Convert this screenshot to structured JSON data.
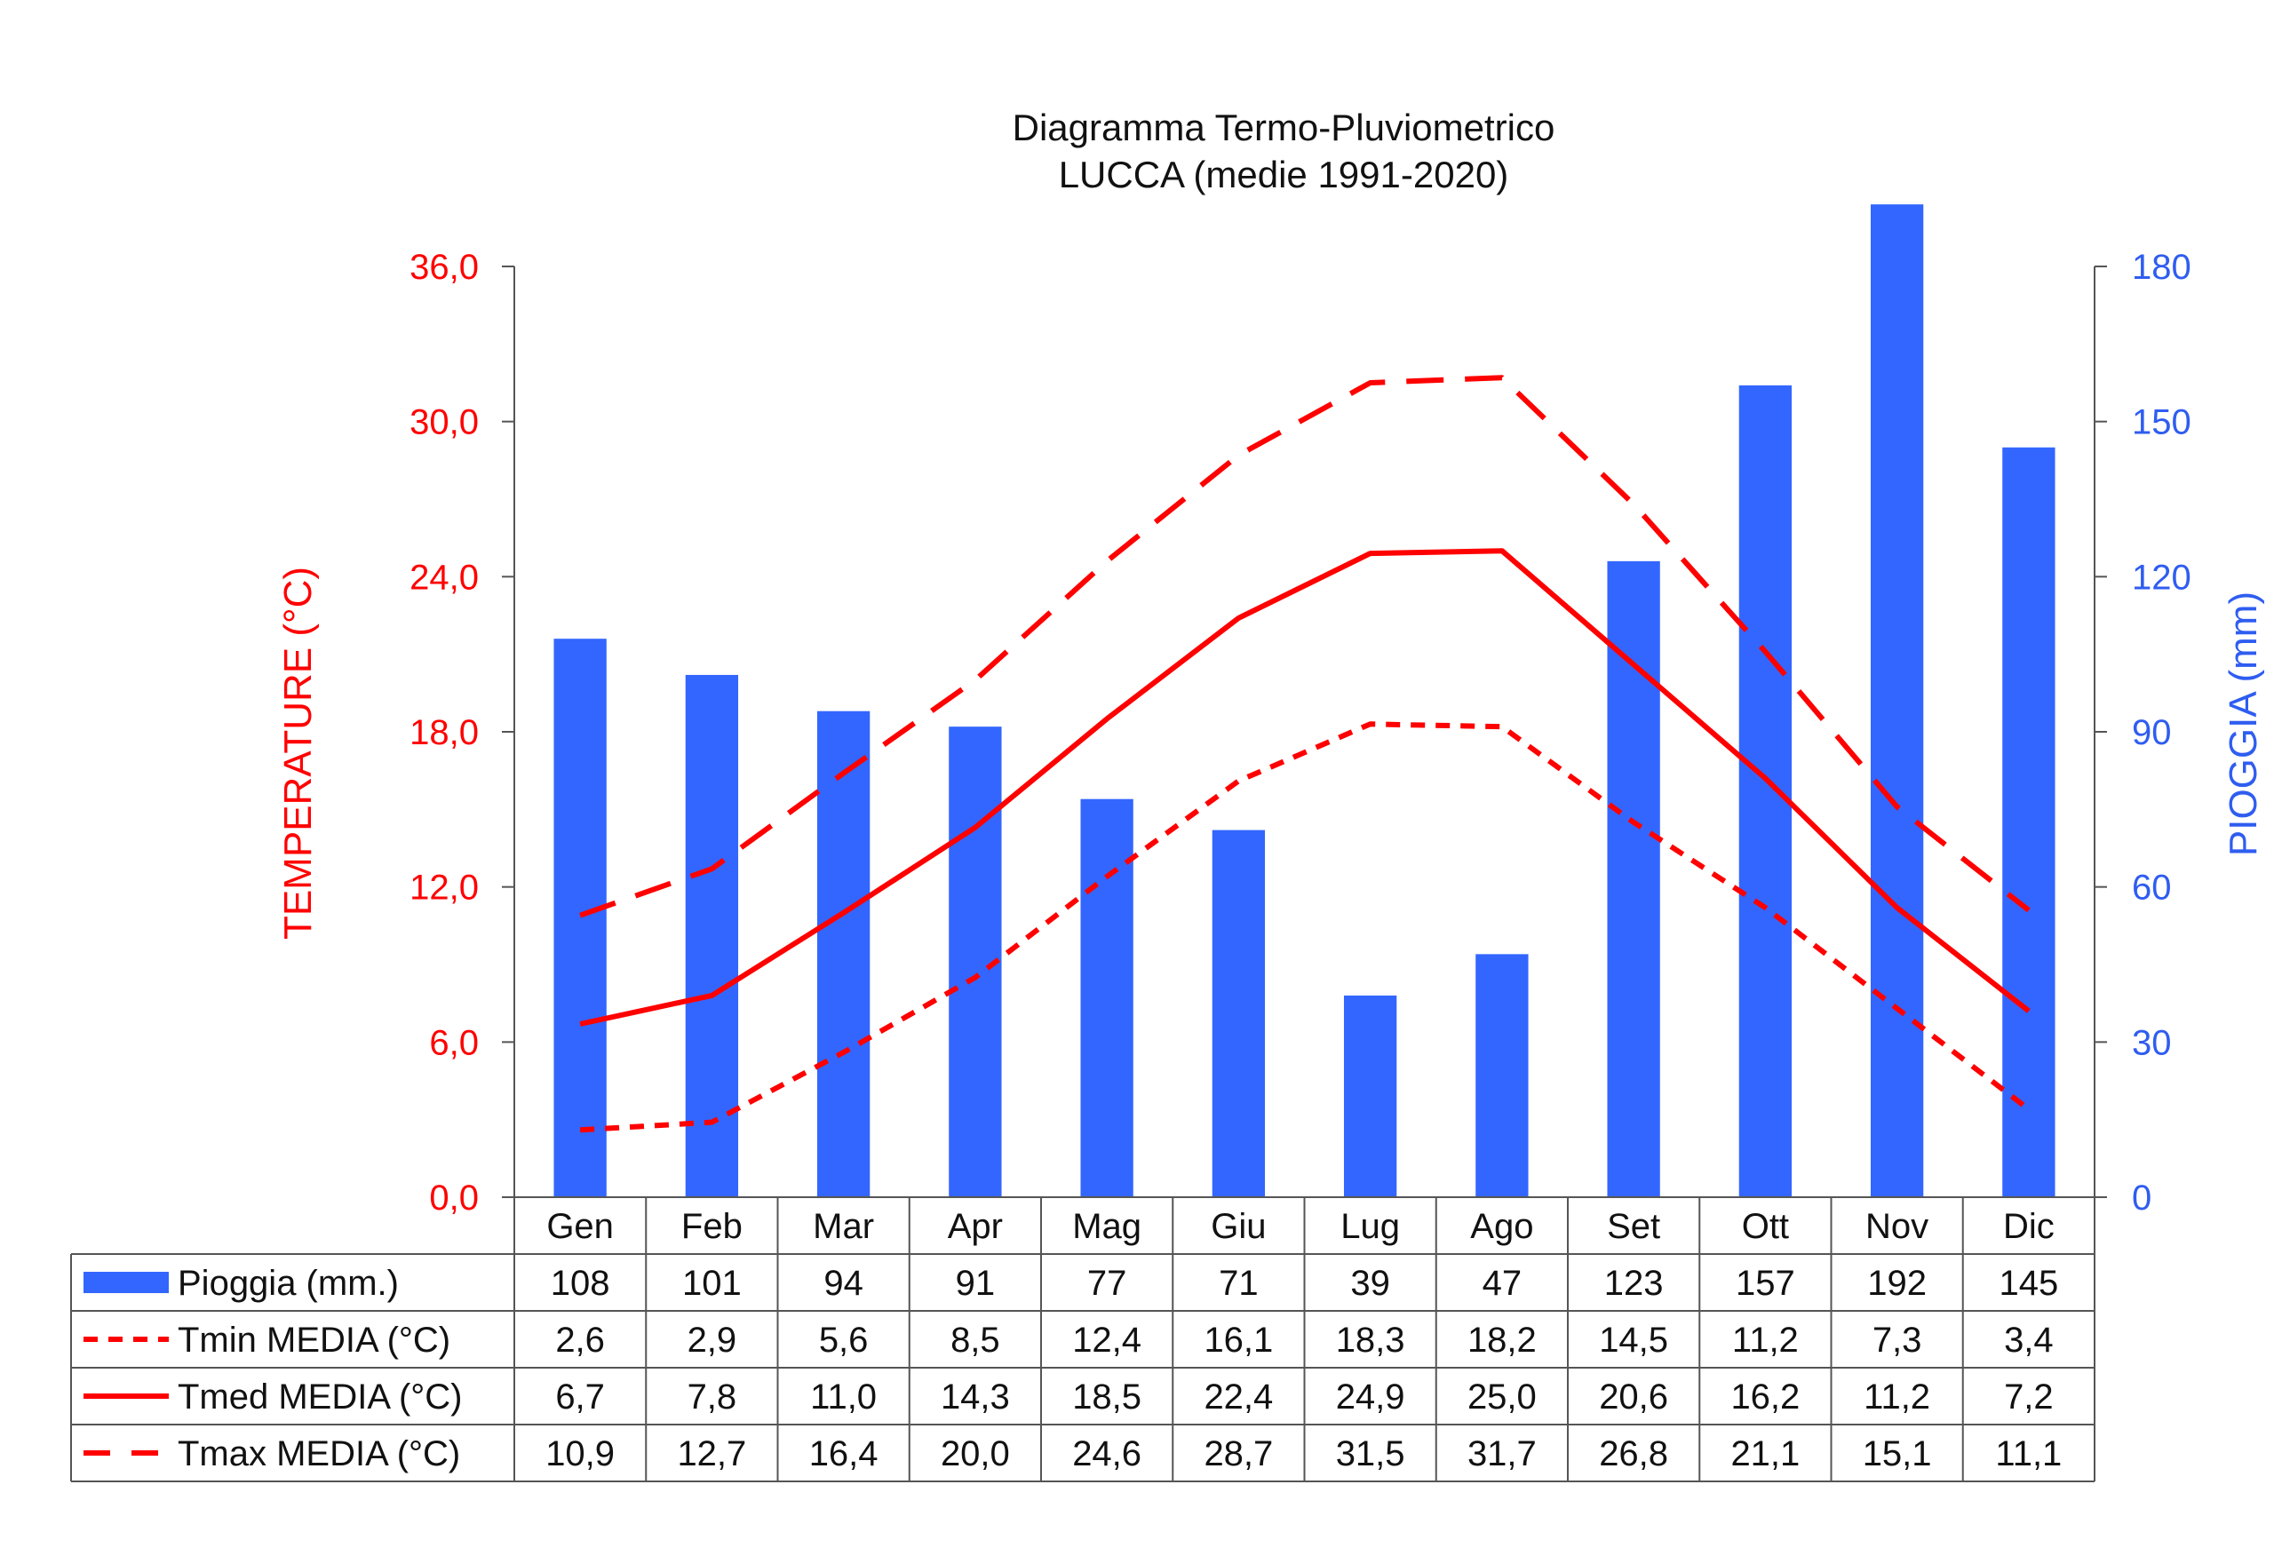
{
  "chart_data": {
    "type": "bar+line",
    "title": "Diagramma Termo-Pluviometrico",
    "subtitle": "LUCCA (medie 1991-2020)",
    "categories": [
      "Gen",
      "Feb",
      "Mar",
      "Apr",
      "Mag",
      "Giu",
      "Lug",
      "Ago",
      "Set",
      "Ott",
      "Nov",
      "Dic"
    ],
    "y_left": {
      "label": "TEMPERATURE (°C)",
      "range": [
        0,
        36
      ],
      "ticks": [
        "0,0",
        "6,0",
        "12,0",
        "18,0",
        "24,0",
        "30,0",
        "36,0"
      ],
      "color": "#ff0000"
    },
    "y_right": {
      "label": "PIOGGIA (mm)",
      "range": [
        0,
        180
      ],
      "ticks": [
        "0",
        "30",
        "60",
        "90",
        "120",
        "150",
        "180"
      ],
      "color": "#2f5df0"
    },
    "series": [
      {
        "name": "Pioggia (mm.)",
        "type": "bar",
        "axis": "right",
        "color": "#3366ff",
        "values": [
          108,
          101,
          94,
          91,
          77,
          71,
          39,
          47,
          123,
          157,
          192,
          145
        ],
        "labels": [
          "108",
          "101",
          "94",
          "91",
          "77",
          "71",
          "39",
          "47",
          "123",
          "157",
          "192",
          "145"
        ]
      },
      {
        "name": "Tmin MEDIA (°C)",
        "type": "line",
        "style": "short-dash",
        "axis": "left",
        "color": "#ff0000",
        "values": [
          2.6,
          2.9,
          5.6,
          8.5,
          12.4,
          16.1,
          18.3,
          18.2,
          14.5,
          11.2,
          7.3,
          3.4
        ],
        "labels": [
          "2,6",
          "2,9",
          "5,6",
          "8,5",
          "12,4",
          "16,1",
          "18,3",
          "18,2",
          "14,5",
          "11,2",
          "7,3",
          "3,4"
        ]
      },
      {
        "name": "Tmed MEDIA (°C)",
        "type": "line",
        "style": "solid",
        "axis": "left",
        "color": "#ff0000",
        "values": [
          6.7,
          7.8,
          11.0,
          14.3,
          18.5,
          22.4,
          24.9,
          25.0,
          20.6,
          16.2,
          11.2,
          7.2
        ],
        "labels": [
          "6,7",
          "7,8",
          "11,0",
          "14,3",
          "18,5",
          "22,4",
          "24,9",
          "25,0",
          "20,6",
          "16,2",
          "11,2",
          "7,2"
        ]
      },
      {
        "name": "Tmax MEDIA (°C)",
        "type": "line",
        "style": "long-dash",
        "axis": "left",
        "color": "#ff0000",
        "values": [
          10.9,
          12.7,
          16.4,
          20.0,
          24.6,
          28.7,
          31.5,
          31.7,
          26.8,
          21.1,
          15.1,
          11.1
        ],
        "labels": [
          "10,9",
          "12,7",
          "16,4",
          "20,0",
          "24,6",
          "28,7",
          "31,5",
          "31,7",
          "26,8",
          "21,1",
          "15,1",
          "11,1"
        ]
      }
    ],
    "grid": false,
    "legend": "data-table-below"
  }
}
